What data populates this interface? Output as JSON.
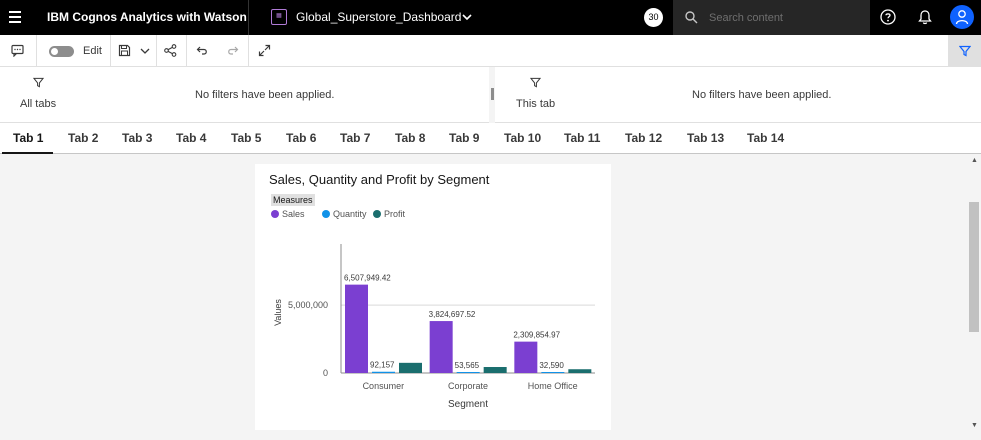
{
  "app": {
    "brand": "IBM Cognos Analytics with Watson",
    "dashboard_title": "Global_Superstore_Dashboard",
    "badge": "30",
    "search_placeholder": "Search content"
  },
  "toolbar": {
    "edit_label": "Edit"
  },
  "filters": {
    "all_tabs_label": "All tabs",
    "all_tabs_message": "No filters have been applied.",
    "this_tab_label": "This tab",
    "this_tab_message": "No filters have been applied."
  },
  "tabs": [
    "Tab 1",
    "Tab 2",
    "Tab 3",
    "Tab 4",
    "Tab 5",
    "Tab 6",
    "Tab 7",
    "Tab 8",
    "Tab 9",
    "Tab 10",
    "Tab 11",
    "Tab 12",
    "Tab 13",
    "Tab 14"
  ],
  "active_tab": 0,
  "colors": {
    "sales": "#7b3fd1",
    "quantity": "#1192e8",
    "profit": "#1a6e6e"
  },
  "chart_data": {
    "type": "bar",
    "title": "Sales, Quantity and Profit by Segment",
    "legend_title": "Measures",
    "xlabel": "Segment",
    "ylabel": "Values",
    "categories": [
      "Consumer",
      "Corporate",
      "Home Office"
    ],
    "series": [
      {
        "name": "Sales",
        "values": [
          6507949.42,
          3824697.52,
          2309854.97
        ],
        "labels": [
          "6,507,949.42",
          "3,824,697.52",
          "2,309,854.97"
        ]
      },
      {
        "name": "Quantity",
        "values": [
          92157,
          53565,
          32590
        ],
        "labels": [
          "92,157",
          "53,565",
          "32,590"
        ]
      },
      {
        "name": "Profit",
        "values": [
          749239.78,
          441208.33,
          277009.18
        ],
        "labels": [
          "",
          "",
          ""
        ]
      }
    ],
    "yticks": [
      0,
      5000000
    ],
    "ytick_labels": [
      "0",
      "5,000,000"
    ],
    "ylim": [
      0,
      9500000
    ],
    "grid": true,
    "legend_position": "top-left"
  }
}
